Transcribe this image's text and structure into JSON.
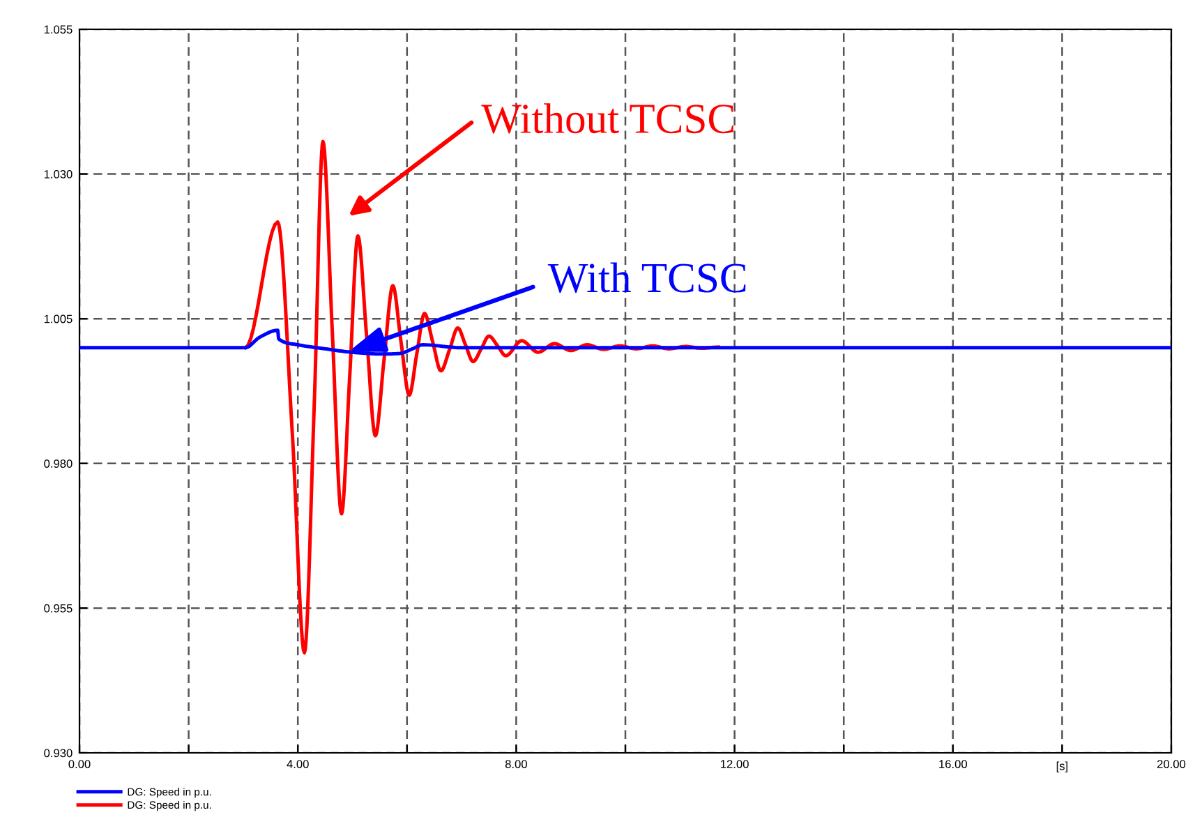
{
  "chart_data": {
    "type": "line",
    "xlabel": "[s]",
    "xlim": [
      0,
      20
    ],
    "ylim": [
      0.93,
      1.055
    ],
    "xticks": [
      {
        "value": 0,
        "label": "0.00"
      },
      {
        "value": 2,
        "label": null
      },
      {
        "value": 4,
        "label": "4.00"
      },
      {
        "value": 6,
        "label": null
      },
      {
        "value": 8,
        "label": "8.00"
      },
      {
        "value": 10,
        "label": null
      },
      {
        "value": 12,
        "label": "12.00"
      },
      {
        "value": 14,
        "label": null
      },
      {
        "value": 16,
        "label": "16.00"
      },
      {
        "value": 18,
        "label": null
      },
      {
        "value": 20,
        "label": "20.00"
      }
    ],
    "yticks": [
      {
        "value": 0.93,
        "label": "0.930"
      },
      {
        "value": 0.955,
        "label": "0.955"
      },
      {
        "value": 0.98,
        "label": "0.980"
      },
      {
        "value": 1.005,
        "label": "1.005"
      },
      {
        "value": 1.03,
        "label": "1.030"
      },
      {
        "value": 1.055,
        "label": "1.055"
      }
    ],
    "grid": true,
    "legend": "bottom left",
    "line_style": "solid",
    "series": [
      {
        "name": "DG: Speed in p.u.",
        "color": "#0000ff",
        "x": [
          0,
          3.04,
          3.3,
          3.63,
          3.65,
          4.0,
          4.5,
          5.0,
          5.57,
          5.87,
          6.1,
          6.29,
          7.0,
          20
        ],
        "values": [
          1.0,
          1.0,
          1.0018,
          1.003,
          1.0015,
          1.0005,
          0.9998,
          0.9992,
          0.9989,
          0.999,
          0.9998,
          1.0005,
          1.0,
          1.0
        ]
      },
      {
        "name": "DG: Speed in p.u.",
        "color": "#ff0000",
        "x": [
          3.04,
          3.63,
          3.9,
          4.12,
          4.3,
          4.46,
          4.63,
          4.8,
          4.95,
          5.1,
          5.26,
          5.42,
          5.58,
          5.74,
          5.89,
          6.04,
          6.18,
          6.32,
          6.47,
          6.62,
          6.78,
          6.93,
          7.07,
          7.21,
          7.36,
          7.5,
          7.66,
          7.81,
          8.1,
          8.4,
          8.7,
          9.0,
          9.3,
          9.6,
          9.9,
          10.2,
          10.5,
          10.8,
          11.1,
          11.4,
          11.7
        ],
        "values": [
          1.0,
          1.0217,
          0.985,
          0.9473,
          0.99,
          1.0356,
          1.003,
          0.9713,
          0.995,
          1.0193,
          1.002,
          0.9848,
          0.998,
          1.0107,
          1.001,
          0.9918,
          0.999,
          1.0059,
          1.001,
          0.996,
          0.9997,
          1.0034,
          1.0005,
          0.9976,
          0.9998,
          1.002,
          1.0003,
          0.9986,
          1.0012,
          0.9992,
          1.0007,
          0.9995,
          1.0005,
          0.9997,
          1.0003,
          0.9998,
          1.0003,
          0.9998,
          1.0002,
          0.9999,
          1.0001
        ]
      }
    ],
    "annotations": [
      "Without TCSC",
      {
        "text": "With TCSC",
        "x": 4.93,
        "y": 0.9993
      }
    ]
  }
}
